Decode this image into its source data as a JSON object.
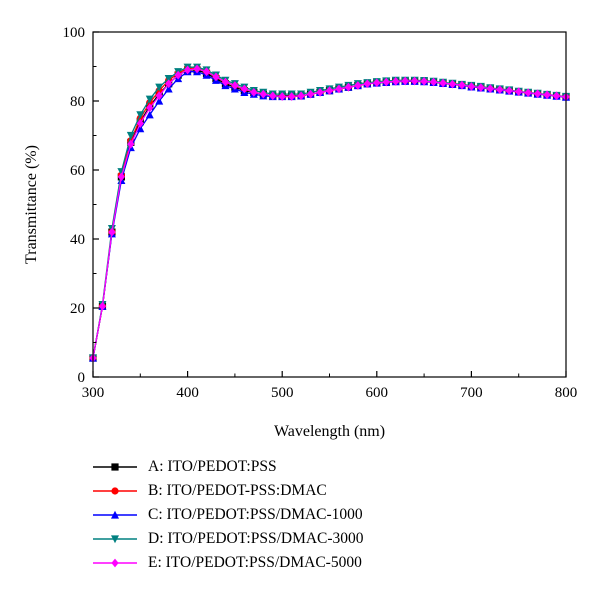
{
  "chart_data": {
    "type": "line",
    "xlabel": "Wavelength (nm)",
    "ylabel": "Transmittance (%)",
    "xlim": [
      300,
      800
    ],
    "ylim": [
      0,
      100
    ],
    "xticks": [
      "300",
      "400",
      "500",
      "600",
      "700",
      "800"
    ],
    "yticks": [
      "0",
      "20",
      "40",
      "60",
      "80",
      "100"
    ],
    "grid": false,
    "legend_position": "bottom",
    "series": [
      {
        "name": "A: ITO/PEDOT:PSS",
        "color": "#000000",
        "marker": "square",
        "x": [
          300,
          310,
          320,
          330,
          340,
          350,
          360,
          370,
          380,
          390,
          400,
          410,
          420,
          430,
          440,
          450,
          460,
          470,
          480,
          490,
          500,
          510,
          520,
          530,
          540,
          550,
          560,
          570,
          580,
          590,
          600,
          610,
          620,
          630,
          640,
          650,
          660,
          670,
          680,
          690,
          700,
          710,
          720,
          730,
          740,
          750,
          760,
          770,
          780,
          790,
          800
        ],
        "y": [
          5.5,
          20.5,
          42,
          58,
          68,
          74,
          78.5,
          82,
          85,
          87.5,
          89,
          89,
          88,
          86.5,
          85,
          84,
          83,
          82.5,
          82,
          81.5,
          81.5,
          81.5,
          81.5,
          82,
          82.5,
          83,
          83.5,
          84,
          84.5,
          85,
          85.3,
          85.5,
          85.7,
          85.8,
          85.8,
          85.7,
          85.5,
          85.2,
          85,
          84.7,
          84.3,
          84,
          83.6,
          83.3,
          83,
          82.7,
          82.4,
          82.1,
          81.8,
          81.5,
          81.2
        ]
      },
      {
        "name": "B: ITO/PEDOT-PSS:DMAC",
        "color": "#ff0000",
        "marker": "circle",
        "x": [
          300,
          310,
          320,
          330,
          340,
          350,
          360,
          370,
          380,
          390,
          400,
          410,
          420,
          430,
          440,
          450,
          460,
          470,
          480,
          490,
          500,
          510,
          520,
          530,
          540,
          550,
          560,
          570,
          580,
          590,
          600,
          610,
          620,
          630,
          640,
          650,
          660,
          670,
          680,
          690,
          700,
          710,
          720,
          730,
          740,
          750,
          760,
          770,
          780,
          790,
          800
        ],
        "y": [
          5.5,
          20.5,
          42,
          58.5,
          68.5,
          75,
          79.5,
          83,
          86,
          88,
          89.5,
          89.5,
          88.5,
          87,
          85.5,
          84.5,
          83.5,
          82.5,
          82,
          81.5,
          81.3,
          81.3,
          81.5,
          82,
          82.5,
          83,
          83.5,
          84,
          84.5,
          85,
          85.3,
          85.5,
          85.7,
          85.8,
          85.8,
          85.7,
          85.5,
          85.2,
          85,
          84.7,
          84.3,
          84,
          83.6,
          83.3,
          83,
          82.7,
          82.4,
          82.1,
          81.8,
          81.5,
          81.2
        ]
      },
      {
        "name": "C: ITO/PEDOT:PSS/DMAC-1000",
        "color": "#0000ff",
        "marker": "triangle-up",
        "x": [
          300,
          310,
          320,
          330,
          340,
          350,
          360,
          370,
          380,
          390,
          400,
          410,
          420,
          430,
          440,
          450,
          460,
          470,
          480,
          490,
          500,
          510,
          520,
          530,
          540,
          550,
          560,
          570,
          580,
          590,
          600,
          610,
          620,
          630,
          640,
          650,
          660,
          670,
          680,
          690,
          700,
          710,
          720,
          730,
          740,
          750,
          760,
          770,
          780,
          790,
          800
        ],
        "y": [
          5.5,
          20.5,
          41.5,
          57,
          66.5,
          72,
          76,
          80,
          83.5,
          86.5,
          88.5,
          88.5,
          87.5,
          86,
          84.5,
          83.5,
          82.5,
          82,
          81.5,
          81.3,
          81.3,
          81.3,
          81.5,
          82,
          82.5,
          83,
          83.5,
          84,
          84.5,
          85,
          85.2,
          85.4,
          85.6,
          85.7,
          85.7,
          85.6,
          85.4,
          85.1,
          84.8,
          84.5,
          84.1,
          83.8,
          83.5,
          83.2,
          82.9,
          82.6,
          82.3,
          82,
          81.7,
          81.4,
          81.1
        ]
      },
      {
        "name": "D: ITO/PEDOT:PSS/DMAC-3000",
        "color": "#008080",
        "marker": "triangle-down",
        "x": [
          300,
          310,
          320,
          330,
          340,
          350,
          360,
          370,
          380,
          390,
          400,
          410,
          420,
          430,
          440,
          450,
          460,
          470,
          480,
          490,
          500,
          510,
          520,
          530,
          540,
          550,
          560,
          570,
          580,
          590,
          600,
          610,
          620,
          630,
          640,
          650,
          660,
          670,
          680,
          690,
          700,
          710,
          720,
          730,
          740,
          750,
          760,
          770,
          780,
          790,
          800
        ],
        "y": [
          5.5,
          21,
          43,
          59.5,
          70,
          76,
          80.5,
          84,
          86.5,
          88.5,
          89.8,
          89.8,
          89,
          87.5,
          86,
          85,
          84,
          83,
          82.5,
          82,
          82,
          82,
          82,
          82.5,
          83,
          83.5,
          84,
          84.5,
          85,
          85.3,
          85.6,
          85.8,
          86,
          86,
          86,
          85.9,
          85.7,
          85.4,
          85.1,
          84.8,
          84.5,
          84.2,
          83.8,
          83.5,
          83.2,
          82.8,
          82.5,
          82.2,
          81.9,
          81.6,
          81.3
        ]
      },
      {
        "name": "E: ITO/PEDOT:PSS/DMAC-5000",
        "color": "#ff00ff",
        "marker": "diamond",
        "x": [
          300,
          310,
          320,
          330,
          340,
          350,
          360,
          370,
          380,
          390,
          400,
          410,
          420,
          430,
          440,
          450,
          460,
          470,
          480,
          490,
          500,
          510,
          520,
          530,
          540,
          550,
          560,
          570,
          580,
          590,
          600,
          610,
          620,
          630,
          640,
          650,
          660,
          670,
          680,
          690,
          700,
          710,
          720,
          730,
          740,
          750,
          760,
          770,
          780,
          790,
          800
        ],
        "y": [
          5.5,
          20.5,
          42,
          58,
          67.5,
          73.5,
          78,
          81.5,
          85,
          87.5,
          89,
          89.3,
          88.5,
          87,
          85.5,
          84.5,
          83.5,
          82.5,
          82,
          81.5,
          81.3,
          81.3,
          81.5,
          82,
          82.5,
          83,
          83.5,
          84,
          84.5,
          85,
          85.3,
          85.5,
          85.7,
          85.8,
          85.8,
          85.7,
          85.5,
          85.2,
          84.9,
          84.6,
          84.2,
          83.9,
          83.6,
          83.3,
          83,
          82.7,
          82.4,
          82.1,
          81.8,
          81.5,
          81.2
        ]
      }
    ]
  }
}
